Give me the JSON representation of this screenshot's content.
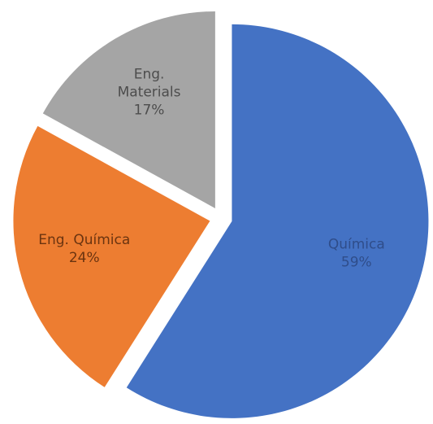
{
  "chart_data": {
    "type": "pie",
    "categories": [
      "Química",
      "Eng. Química",
      "Eng. Materials"
    ],
    "values": [
      59,
      24,
      17
    ],
    "value_labels": [
      "59%",
      "24%",
      "17%"
    ],
    "colors": [
      "#4472c4",
      "#ed7d31",
      "#a5a5a5"
    ],
    "exploded": true
  }
}
